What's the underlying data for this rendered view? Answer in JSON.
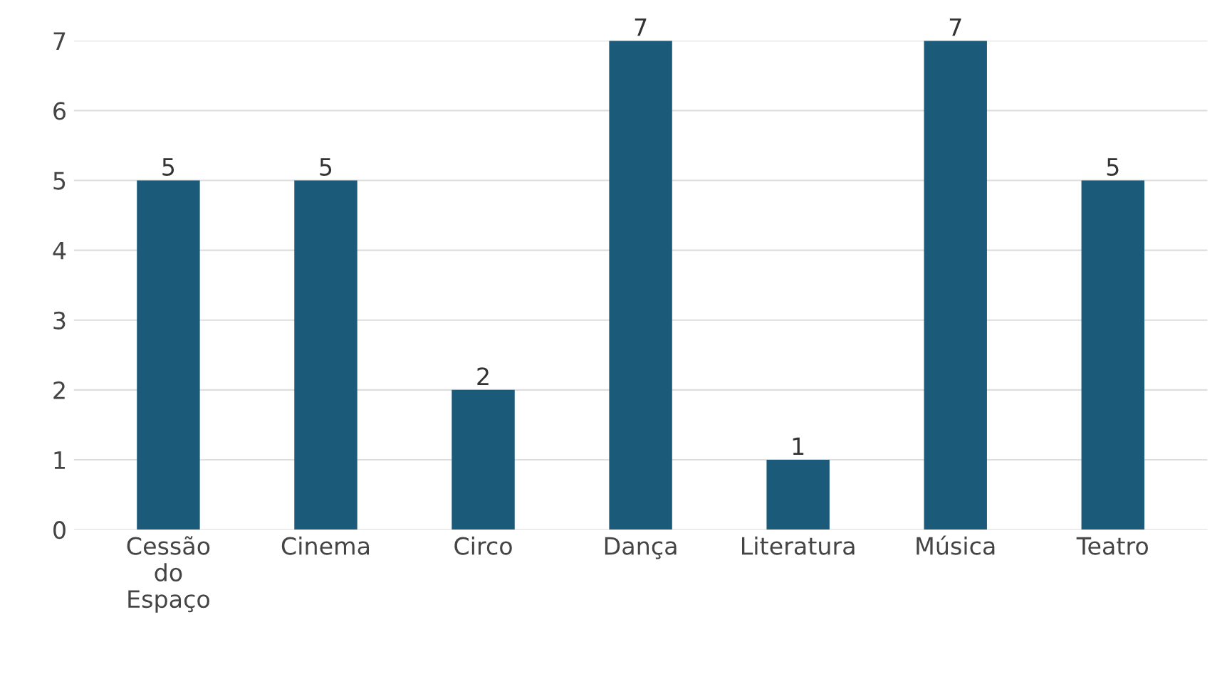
{
  "chart_data": {
    "type": "bar",
    "categories": [
      "Cessão do Espaço",
      "Cinema",
      "Circo",
      "Dança",
      "Literatura",
      "Música",
      "Teatro"
    ],
    "values": [
      5,
      5,
      2,
      7,
      1,
      7,
      5
    ],
    "color": "#1c5a7a",
    "ylim": [
      0,
      7
    ],
    "yticks": [
      0,
      1,
      2,
      3,
      4,
      5,
      6,
      7
    ],
    "grid": "y",
    "data_labels": true
  }
}
